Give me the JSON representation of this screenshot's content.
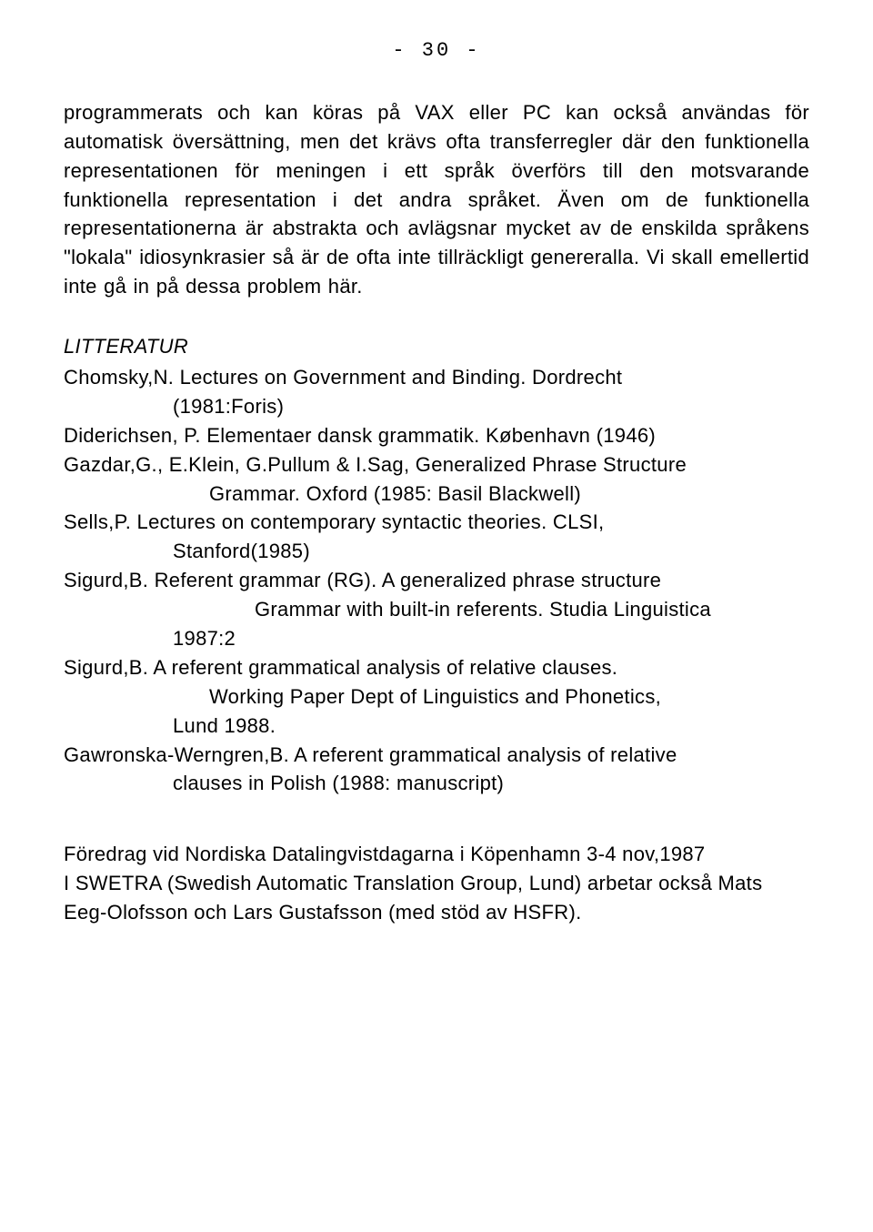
{
  "page_number": "- 30 -",
  "body_paragraph": "programmerats och kan köras på VAX eller PC kan också användas för automatisk översättning, men det krävs ofta transferregler där den funktionella representationen för meningen i ett språk överförs till den motsvarande funktionella representation i det andra språket. Även om de funktionella representationerna är abstrakta och avlägsnar mycket av de enskilda språkens \"lokala\" idiosynkrasier så är de ofta inte tillräckligt genereralla. Vi skall emellertid inte gå in på dessa problem här.",
  "litteratur_heading": "LITTERATUR",
  "refs": {
    "chomsky_l1": "Chomsky,N. Lectures on Government and Binding. Dordrecht",
    "chomsky_l2": "(1981:Foris)",
    "diderichsen": "Diderichsen, P. Elementaer dansk grammatik. København (1946)",
    "gazdar_l1": "Gazdar,G., E.Klein, G.Pullum & I.Sag, Generalized Phrase Structure",
    "gazdar_l2": "Grammar. Oxford (1985: Basil Blackwell)",
    "sells_l1": "Sells,P. Lectures on contemporary syntactic theories. CLSI,",
    "sells_l2": "Stanford(1985)",
    "sigurd1_l1": "Sigurd,B. Referent grammar (RG). A generalized phrase structure",
    "sigurd1_l2": "Grammar with built-in referents. Studia Linguistica",
    "sigurd1_l3": "1987:2",
    "sigurd2_l1": "Sigurd,B. A referent grammatical analysis of relative clauses.",
    "sigurd2_l2": "Working Paper Dept of Linguistics and Phonetics,",
    "sigurd2_l3": "Lund 1988.",
    "gawronska_l1": "Gawronska-Werngren,B. A referent grammatical analysis of relative",
    "gawronska_l2": "clauses in Polish (1988: manuscript)"
  },
  "footnote_l1": "Föredrag vid Nordiska Datalingvistdagarna i Köpenhamn 3-4 nov,1987",
  "footnote_l2": "I SWETRA (Swedish Automatic Translation Group, Lund) arbetar också Mats Eeg-Olofsson och Lars Gustafsson (med stöd av HSFR)."
}
